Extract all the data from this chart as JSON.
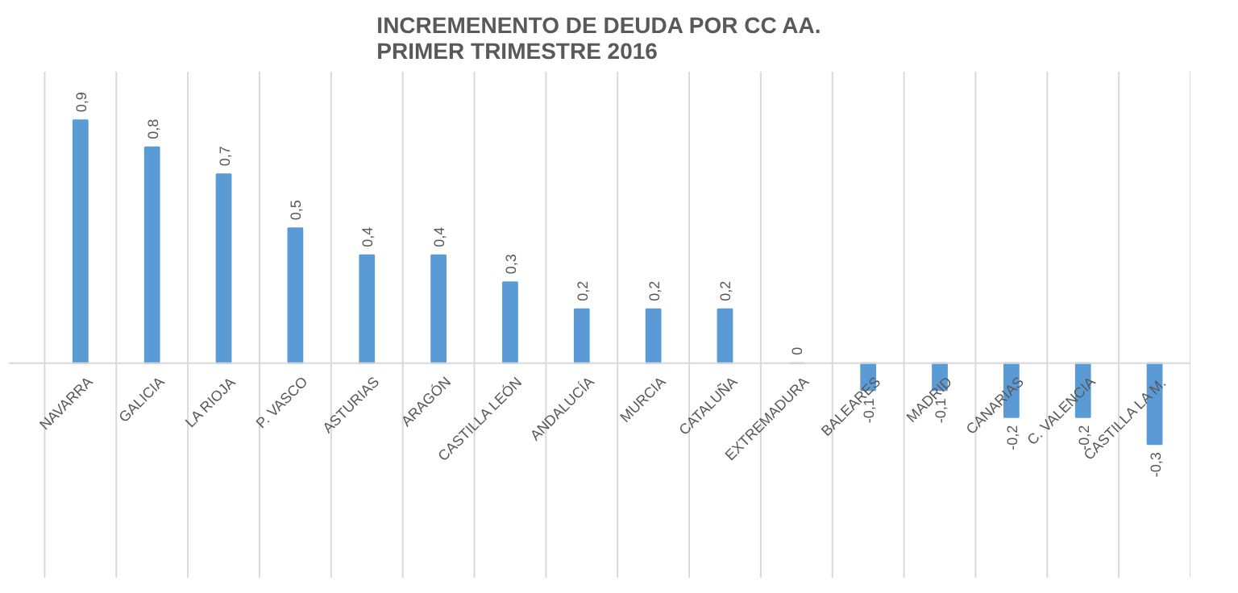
{
  "chart_data": {
    "type": "bar",
    "title": "INCREMENENTO DE DEUDA POR CC AA.\nPRIMER TRIMESTRE 2016",
    "categories": [
      "NAVARRA",
      "GALICIA",
      "LA RIOJA",
      "P. VASCO",
      "ASTURIAS",
      "ARAGÓN",
      "CASTILLA LEÓN",
      "ANDALUCÍA",
      "MURCIA",
      "CATALUÑA",
      "EXTREMADURA",
      "BALEARES",
      "MADRID",
      "CANARIAS",
      "C. VALENCIA",
      "CASTILLA LA M."
    ],
    "values": [
      0.9,
      0.8,
      0.7,
      0.5,
      0.4,
      0.4,
      0.3,
      0.2,
      0.2,
      0.2,
      0,
      -0.1,
      -0.1,
      -0.2,
      -0.2,
      -0.3
    ],
    "value_labels": [
      "0,9",
      "0,8",
      "0,7",
      "0,5",
      "0,4",
      "0,4",
      "0,3",
      "0,2",
      "0,2",
      "0,2",
      "0",
      "-0,1",
      "-0,1",
      "-0,2",
      "-0,2",
      "-0,3"
    ],
    "color": "#5b9bd5",
    "grid": "x"
  }
}
